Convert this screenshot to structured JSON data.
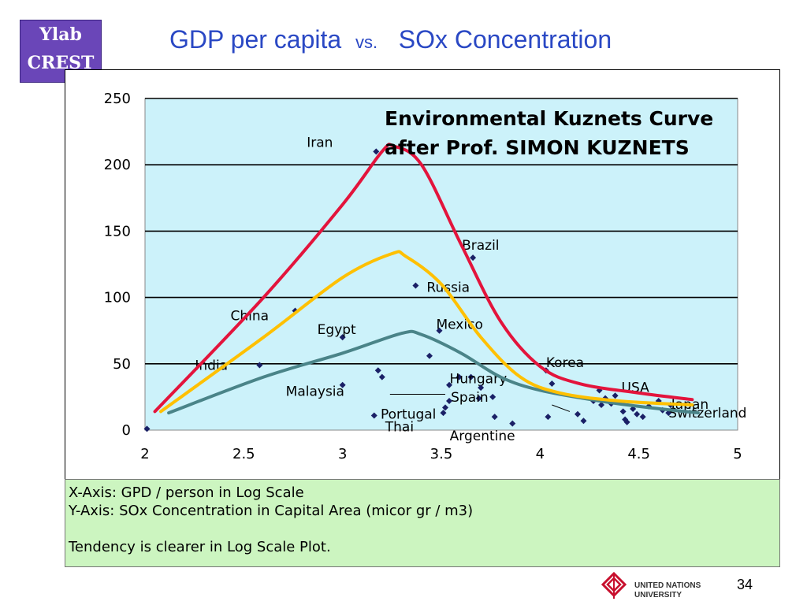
{
  "badge": {
    "line1": "Ylab",
    "line2": "CREST"
  },
  "title": {
    "left": "GDP per capita",
    "vs": "vs.",
    "right": "SOx Concentration"
  },
  "annotation": {
    "line1": "Environmental Kuznets Curve",
    "line2": "after Prof. SIMON KUZNETS"
  },
  "notes": {
    "line1": "X-Axis: GPD / person in Log Scale",
    "line2": "Y-Axis: SOx Concentration in Capital Area (micor gr / m3)",
    "line3": "Tendency is clearer in Log Scale Plot."
  },
  "footer": {
    "org_line1": "UNITED NATIONS",
    "org_line2": "UNIVERSITY",
    "page": "34"
  },
  "chart_data": {
    "type": "scatter",
    "title": "",
    "xlabel": "",
    "ylabel": "",
    "xlim": [
      2,
      5
    ],
    "ylim": [
      0,
      250
    ],
    "xticks": [
      "2",
      "2.5",
      "3",
      "3.5",
      "4",
      "4.5",
      "5"
    ],
    "yticks": [
      "0",
      "50",
      "100",
      "150",
      "200",
      "250"
    ],
    "grid": "horizontal",
    "colors": {
      "plot_bg": "#ccf2fa",
      "point": "#1a2066",
      "red_curve": "#e3143c",
      "yellow_curve": "#ffc000",
      "teal_curve": "#4a8488"
    },
    "labeled_points": [
      {
        "label": "Iran",
        "x": 3.17,
        "y": 210
      },
      {
        "label": "Brazil",
        "x": 3.66,
        "y": 130
      },
      {
        "label": "Russia",
        "x": 3.37,
        "y": 109
      },
      {
        "label": "China",
        "x": 2.76,
        "y": 90
      },
      {
        "label": "Egypt",
        "x": 3.0,
        "y": 70
      },
      {
        "label": "Mexico",
        "x": 3.49,
        "y": 75
      },
      {
        "label": "India",
        "x": 2.58,
        "y": 49
      },
      {
        "label": "Hungary",
        "x": 3.59,
        "y": 40
      },
      {
        "label": "Korea",
        "x": 4.03,
        "y": 45
      },
      {
        "label": "USA",
        "x": 4.3,
        "y": 30
      },
      {
        "label": "Malaysia",
        "x": 3.0,
        "y": 34
      },
      {
        "label": "Spain",
        "x": 3.7,
        "y": 32
      },
      {
        "label": "Portugal",
        "x": 3.52,
        "y": 17
      },
      {
        "label": "Thai",
        "x": 3.16,
        "y": 11
      },
      {
        "label": "Argentine",
        "x": 3.77,
        "y": 10
      },
      {
        "label": "Japan",
        "x": 4.6,
        "y": 22
      },
      {
        "label": "Switzerland",
        "x": 4.65,
        "y": 13
      }
    ],
    "unlabeled_points": [
      {
        "x": 2.01,
        "y": 1
      },
      {
        "x": 3.18,
        "y": 45
      },
      {
        "x": 3.2,
        "y": 40
      },
      {
        "x": 3.44,
        "y": 56
      },
      {
        "x": 3.54,
        "y": 34
      },
      {
        "x": 3.54,
        "y": 22
      },
      {
        "x": 3.51,
        "y": 13
      },
      {
        "x": 3.65,
        "y": 40
      },
      {
        "x": 3.69,
        "y": 24
      },
      {
        "x": 3.76,
        "y": 25
      },
      {
        "x": 3.86,
        "y": 5
      },
      {
        "x": 4.06,
        "y": 35
      },
      {
        "x": 4.04,
        "y": 10
      },
      {
        "x": 4.19,
        "y": 12
      },
      {
        "x": 4.22,
        "y": 7
      },
      {
        "x": 4.27,
        "y": 22
      },
      {
        "x": 4.31,
        "y": 19
      },
      {
        "x": 4.33,
        "y": 24
      },
      {
        "x": 4.36,
        "y": 20
      },
      {
        "x": 4.38,
        "y": 26
      },
      {
        "x": 4.42,
        "y": 14
      },
      {
        "x": 4.43,
        "y": 8
      },
      {
        "x": 4.44,
        "y": 6
      },
      {
        "x": 4.47,
        "y": 16
      },
      {
        "x": 4.49,
        "y": 12
      },
      {
        "x": 4.52,
        "y": 10
      },
      {
        "x": 4.55,
        "y": 18
      },
      {
        "x": 4.62,
        "y": 15
      },
      {
        "x": 4.66,
        "y": 19
      }
    ],
    "curves": [
      {
        "color": "red",
        "points": [
          [
            2.05,
            14
          ],
          [
            2.6,
            100
          ],
          [
            3.0,
            170
          ],
          [
            3.2,
            210
          ],
          [
            3.26,
            214
          ],
          [
            3.4,
            200
          ],
          [
            3.6,
            140
          ],
          [
            3.8,
            82
          ],
          [
            4.0,
            48
          ],
          [
            4.2,
            35
          ],
          [
            4.5,
            28
          ],
          [
            4.77,
            23
          ]
        ]
      },
      {
        "color": "yellow",
        "points": [
          [
            2.08,
            14
          ],
          [
            2.6,
            70
          ],
          [
            3.0,
            115
          ],
          [
            3.25,
            133
          ],
          [
            3.32,
            131
          ],
          [
            3.5,
            110
          ],
          [
            3.7,
            70
          ],
          [
            3.9,
            40
          ],
          [
            4.1,
            28
          ],
          [
            4.4,
            22
          ],
          [
            4.77,
            19
          ]
        ]
      },
      {
        "color": "teal",
        "points": [
          [
            2.12,
            13
          ],
          [
            2.6,
            40
          ],
          [
            3.0,
            58
          ],
          [
            3.3,
            73
          ],
          [
            3.4,
            72
          ],
          [
            3.6,
            58
          ],
          [
            3.8,
            40
          ],
          [
            4.0,
            30
          ],
          [
            4.3,
            22
          ],
          [
            4.55,
            17
          ],
          [
            4.8,
            13
          ]
        ]
      }
    ]
  }
}
